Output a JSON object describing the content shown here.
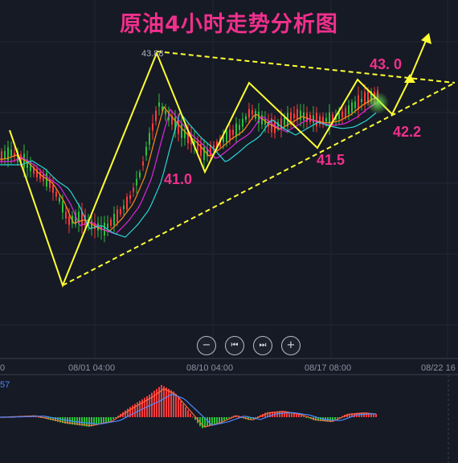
{
  "title": "原油4小时走势分析图",
  "chart_data": {
    "type": "candlestick",
    "annotations": {
      "peak_price": "43.88",
      "low_1": "41.0",
      "low_2": "41.5",
      "target_high": "43. 0",
      "target_low": "42.2"
    },
    "x_ticks": [
      "08/01 04:00",
      "08/10 04:00",
      "08/17 08:00",
      "08/22 16"
    ],
    "x_tick_left_partial": "0",
    "macd_value_partial": "57",
    "pattern": "symmetrical-triangle",
    "colors": {
      "up": "#ff3b3b",
      "down": "#2fbf3a",
      "zigzag": "#ffff33",
      "trendline": "#ffff33",
      "ma_fast": "#ff8c1a",
      "ma_mid": "#e026e0",
      "ma_slow": "#2ad6d6",
      "macd_dif": "#ff6a3d",
      "macd_dea": "#4b88ff"
    }
  },
  "controls": {
    "zoom_out": "−",
    "prev": "⏮",
    "next": "⏭",
    "zoom_in": "+"
  }
}
